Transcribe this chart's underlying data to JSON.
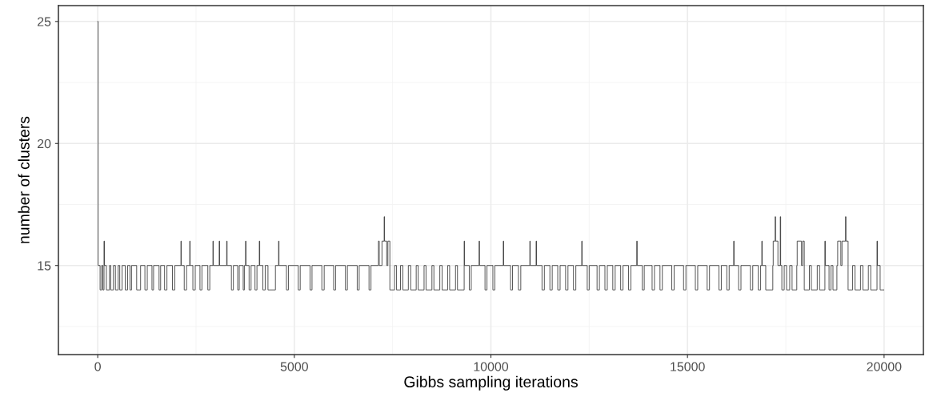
{
  "chart_data": {
    "type": "step",
    "xlabel": "Gibbs sampling iterations",
    "ylabel": "number of clusters",
    "xlim": [
      -1000,
      21000
    ],
    "xticks": [
      0,
      5000,
      10000,
      15000,
      20000
    ],
    "ylim": [
      11.35,
      25.65
    ],
    "yticks": [
      15,
      20,
      25
    ],
    "grid": true,
    "legend": false,
    "series": [
      {
        "color": "#333333",
        "x": [
          1,
          10,
          60,
          100,
          130,
          160,
          170,
          220,
          300,
          330,
          400,
          450,
          520,
          560,
          620,
          700,
          760,
          820,
          860,
          990,
          1090,
          1200,
          1260,
          1380,
          1420,
          1560,
          1600,
          1700,
          1760,
          1900,
          1960,
          2116,
          2126,
          2200,
          2260,
          2340,
          2350,
          2420,
          2480,
          2600,
          2650,
          2800,
          2850,
          2930,
          2940,
          3090,
          3100,
          3280,
          3290,
          3400,
          3450,
          3560,
          3600,
          3700,
          3730,
          3760,
          3770,
          3850,
          3900,
          4000,
          4050,
          4110,
          4120,
          4200,
          4260,
          4330,
          4520,
          4600,
          4610,
          4800,
          4850,
          5100,
          5150,
          5400,
          5450,
          5700,
          5760,
          6000,
          6050,
          6300,
          6350,
          6600,
          6650,
          6900,
          6950,
          7140,
          7160,
          7230,
          7285,
          7295,
          7350,
          7380,
          7430,
          7550,
          7600,
          7700,
          7760,
          7900,
          7960,
          8100,
          8150,
          8300,
          8350,
          8500,
          8550,
          8700,
          8760,
          8900,
          8950,
          9100,
          9150,
          9320,
          9330,
          9450,
          9500,
          9700,
          9710,
          9850,
          9900,
          10050,
          10100,
          10315,
          10325,
          10500,
          10550,
          10700,
          10760,
          10990,
          11000,
          11150,
          11160,
          11300,
          11360,
          11500,
          11560,
          11700,
          11760,
          11900,
          11960,
          12100,
          12160,
          12310,
          12320,
          12450,
          12500,
          12700,
          12760,
          12900,
          12960,
          13100,
          13160,
          13300,
          13360,
          13500,
          13560,
          13710,
          13720,
          13850,
          13900,
          14100,
          14160,
          14300,
          14360,
          14600,
          14660,
          14900,
          14960,
          15200,
          15260,
          15500,
          15560,
          15800,
          15860,
          16000,
          16060,
          16175,
          16185,
          16300,
          16360,
          16600,
          16660,
          16800,
          16860,
          16890,
          16900,
          16990,
          17170,
          17180,
          17230,
          17240,
          17300,
          17360,
          17370,
          17400,
          17460,
          17520,
          17600,
          17660,
          17780,
          17790,
          17900,
          17930,
          17970,
          18100,
          18150,
          18300,
          18360,
          18495,
          18505,
          18600,
          18650,
          18700,
          18800,
          18820,
          18900,
          18930,
          19020,
          19030,
          19085,
          19200,
          19260,
          19400,
          19460,
          19600,
          19660,
          19820,
          19830,
          19900,
          20000
        ],
        "values": [
          25,
          15,
          14,
          15,
          14,
          16,
          15,
          14,
          15,
          14,
          15,
          14,
          15,
          14,
          15,
          14,
          15,
          14,
          15,
          14,
          15,
          14,
          15,
          14,
          15,
          14,
          15,
          14,
          15,
          14,
          15,
          16,
          15,
          14,
          15,
          16,
          15,
          14,
          15,
          14,
          15,
          14,
          15,
          16,
          15,
          16,
          15,
          16,
          15,
          14,
          15,
          14,
          15,
          14,
          15,
          16,
          15,
          14,
          15,
          14,
          15,
          16,
          15,
          14,
          15,
          14,
          15,
          16,
          15,
          14,
          15,
          14,
          15,
          14,
          15,
          14,
          15,
          14,
          15,
          14,
          15,
          14,
          15,
          14,
          15,
          16,
          15,
          16,
          17,
          16,
          15,
          16,
          14,
          15,
          14,
          15,
          14,
          15,
          14,
          15,
          14,
          15,
          14,
          15,
          14,
          15,
          14,
          15,
          14,
          15,
          14,
          16,
          15,
          14,
          15,
          16,
          15,
          14,
          15,
          14,
          15,
          16,
          15,
          14,
          15,
          14,
          15,
          16,
          15,
          16,
          15,
          14,
          15,
          14,
          15,
          14,
          15,
          14,
          15,
          14,
          15,
          16,
          15,
          14,
          15,
          14,
          15,
          14,
          15,
          14,
          15,
          14,
          15,
          14,
          15,
          16,
          15,
          14,
          15,
          14,
          15,
          14,
          15,
          14,
          15,
          14,
          15,
          14,
          15,
          14,
          15,
          14,
          15,
          14,
          15,
          16,
          15,
          14,
          15,
          14,
          15,
          14,
          15,
          16,
          15,
          14,
          15,
          16,
          17,
          16,
          15,
          17,
          15,
          14,
          15,
          14,
          15,
          14,
          15,
          16,
          15,
          16,
          14,
          15,
          14,
          15,
          14,
          16,
          15,
          14,
          15,
          14,
          15,
          16,
          15,
          16,
          17,
          16,
          14,
          15,
          14,
          15,
          14,
          15,
          14,
          16,
          15,
          14,
          14
        ]
      }
    ]
  }
}
